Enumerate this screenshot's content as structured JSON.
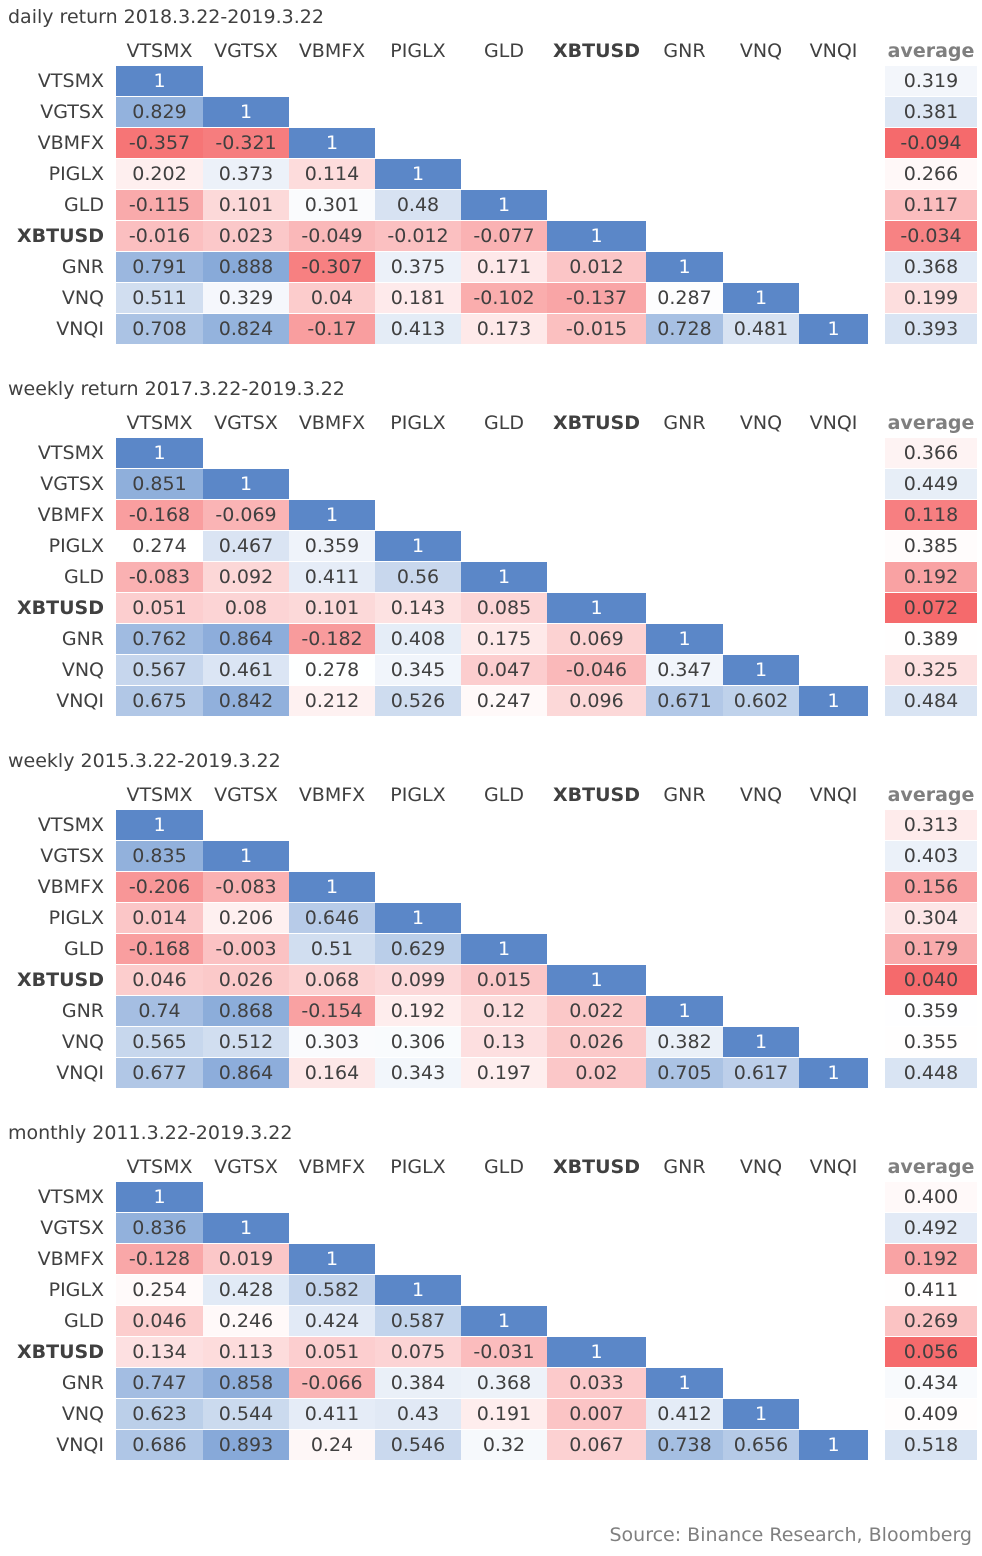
{
  "chart_data": [
    {
      "type": "heatmap",
      "title": "daily return 2018.3.22-2019.3.22",
      "columns": [
        "VTSMX",
        "VGTSX",
        "VBMFX",
        "PIGLX",
        "GLD",
        "XBTUSD",
        "GNR",
        "VNQ",
        "VNQI"
      ],
      "rows": [
        "VTSMX",
        "VGTSX",
        "VBMFX",
        "PIGLX",
        "GLD",
        "XBTUSD",
        "GNR",
        "VNQ",
        "VNQI"
      ],
      "highlight": "XBTUSD",
      "values": [
        [
          "1"
        ],
        [
          "0.829",
          "1"
        ],
        [
          "-0.357",
          "-0.321",
          "1"
        ],
        [
          "0.202",
          "0.373",
          "0.114",
          "1"
        ],
        [
          "-0.115",
          "0.101",
          "0.301",
          "0.48",
          "1"
        ],
        [
          "-0.016",
          "0.023",
          "-0.049",
          "-0.012",
          "-0.077",
          "1"
        ],
        [
          "0.791",
          "0.888",
          "-0.307",
          "0.375",
          "0.171",
          "0.012",
          "1"
        ],
        [
          "0.511",
          "0.329",
          "0.04",
          "0.181",
          "-0.102",
          "-0.137",
          "0.287",
          "1"
        ],
        [
          "0.708",
          "0.824",
          "-0.17",
          "0.413",
          "0.173",
          "-0.015",
          "0.728",
          "0.481",
          "1"
        ]
      ],
      "average_label": "average",
      "average": [
        "0.319",
        "0.381",
        "-0.094",
        "0.266",
        "0.117",
        "-0.034",
        "0.368",
        "0.199",
        "0.393"
      ]
    },
    {
      "type": "heatmap",
      "title": "weekly return 2017.3.22-2019.3.22",
      "columns": [
        "VTSMX",
        "VGTSX",
        "VBMFX",
        "PIGLX",
        "GLD",
        "XBTUSD",
        "GNR",
        "VNQ",
        "VNQI"
      ],
      "rows": [
        "VTSMX",
        "VGTSX",
        "VBMFX",
        "PIGLX",
        "GLD",
        "XBTUSD",
        "GNR",
        "VNQ",
        "VNQI"
      ],
      "highlight": "XBTUSD",
      "values": [
        [
          "1"
        ],
        [
          "0.851",
          "1"
        ],
        [
          "-0.168",
          "-0.069",
          "1"
        ],
        [
          "0.274",
          "0.467",
          "0.359",
          "1"
        ],
        [
          "-0.083",
          "0.092",
          "0.411",
          "0.56",
          "1"
        ],
        [
          "0.051",
          "0.08",
          "0.101",
          "0.143",
          "0.085",
          "1"
        ],
        [
          "0.762",
          "0.864",
          "-0.182",
          "0.408",
          "0.175",
          "0.069",
          "1"
        ],
        [
          "0.567",
          "0.461",
          "0.278",
          "0.345",
          "0.047",
          "-0.046",
          "0.347",
          "1"
        ],
        [
          "0.675",
          "0.842",
          "0.212",
          "0.526",
          "0.247",
          "0.096",
          "0.671",
          "0.602",
          "1"
        ]
      ],
      "average_label": "average",
      "average": [
        "0.366",
        "0.449",
        "0.118",
        "0.385",
        "0.192",
        "0.072",
        "0.389",
        "0.325",
        "0.484"
      ]
    },
    {
      "type": "heatmap",
      "title": "weekly 2015.3.22-2019.3.22",
      "columns": [
        "VTSMX",
        "VGTSX",
        "VBMFX",
        "PIGLX",
        "GLD",
        "XBTUSD",
        "GNR",
        "VNQ",
        "VNQI"
      ],
      "rows": [
        "VTSMX",
        "VGTSX",
        "VBMFX",
        "PIGLX",
        "GLD",
        "XBTUSD",
        "GNR",
        "VNQ",
        "VNQI"
      ],
      "highlight": "XBTUSD",
      "values": [
        [
          "1"
        ],
        [
          "0.835",
          "1"
        ],
        [
          "-0.206",
          "-0.083",
          "1"
        ],
        [
          "0.014",
          "0.206",
          "0.646",
          "1"
        ],
        [
          "-0.168",
          "-0.003",
          "0.51",
          "0.629",
          "1"
        ],
        [
          "0.046",
          "0.026",
          "0.068",
          "0.099",
          "0.015",
          "1"
        ],
        [
          "0.74",
          "0.868",
          "-0.154",
          "0.192",
          "0.12",
          "0.022",
          "1"
        ],
        [
          "0.565",
          "0.512",
          "0.303",
          "0.306",
          "0.13",
          "0.026",
          "0.382",
          "1"
        ],
        [
          "0.677",
          "0.864",
          "0.164",
          "0.343",
          "0.197",
          "0.02",
          "0.705",
          "0.617",
          "1"
        ]
      ],
      "average_label": "average",
      "average": [
        "0.313",
        "0.403",
        "0.156",
        "0.304",
        "0.179",
        "0.040",
        "0.359",
        "0.355",
        "0.448"
      ]
    },
    {
      "type": "heatmap",
      "title": "monthly 2011.3.22-2019.3.22",
      "columns": [
        "VTSMX",
        "VGTSX",
        "VBMFX",
        "PIGLX",
        "GLD",
        "XBTUSD",
        "GNR",
        "VNQ",
        "VNQI"
      ],
      "rows": [
        "VTSMX",
        "VGTSX",
        "VBMFX",
        "PIGLX",
        "GLD",
        "XBTUSD",
        "GNR",
        "VNQ",
        "VNQI"
      ],
      "highlight": "XBTUSD",
      "values": [
        [
          "1"
        ],
        [
          "0.836",
          "1"
        ],
        [
          "-0.128",
          "0.019",
          "1"
        ],
        [
          "0.254",
          "0.428",
          "0.582",
          "1"
        ],
        [
          "0.046",
          "0.246",
          "0.424",
          "0.587",
          "1"
        ],
        [
          "0.134",
          "0.113",
          "0.051",
          "0.075",
          "-0.031",
          "1"
        ],
        [
          "0.747",
          "0.858",
          "-0.066",
          "0.384",
          "0.368",
          "0.033",
          "1"
        ],
        [
          "0.623",
          "0.544",
          "0.411",
          "0.43",
          "0.191",
          "0.007",
          "0.412",
          "1"
        ],
        [
          "0.686",
          "0.893",
          "0.24",
          "0.546",
          "0.32",
          "0.067",
          "0.738",
          "0.656",
          "1"
        ]
      ],
      "average_label": "average",
      "average": [
        "0.400",
        "0.492",
        "0.192",
        "0.411",
        "0.269",
        "0.056",
        "0.434",
        "0.409",
        "0.518"
      ]
    }
  ],
  "colors": {
    "high": "#4f81c7",
    "mid": "#ffffff",
    "low": "#f4585a",
    "diagonal": "#5b87c8",
    "text": "#404040",
    "source_text": "#7f7f7f"
  },
  "source": "Source: Binance Research, Bloomberg"
}
